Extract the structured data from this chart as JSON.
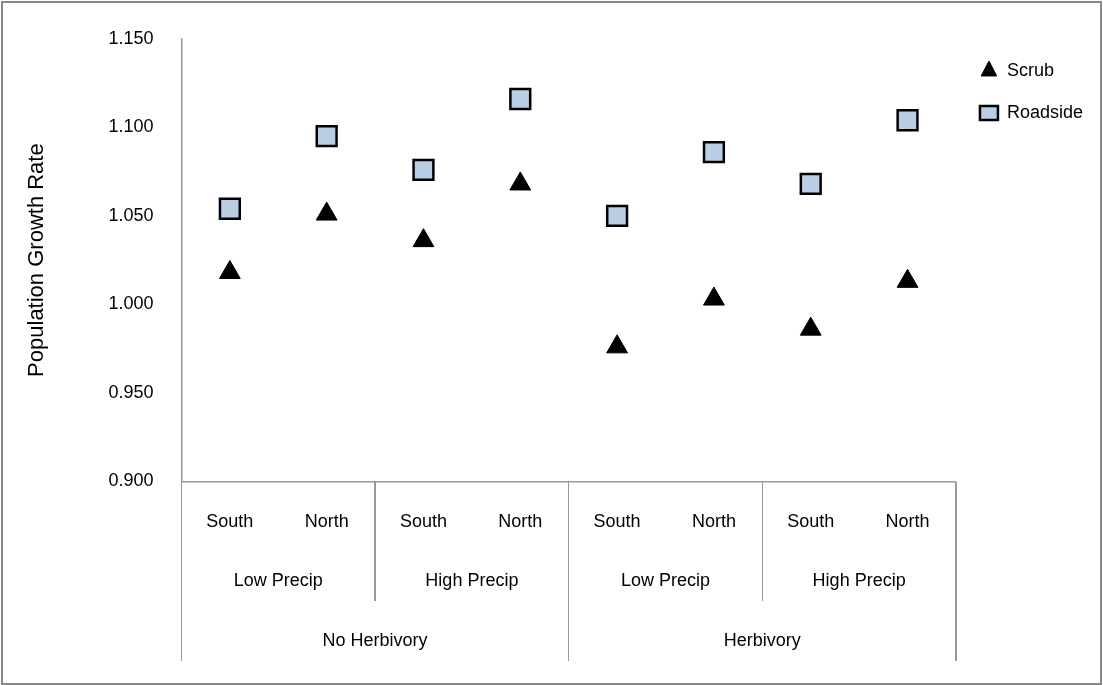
{
  "chart_data": {
    "type": "scatter",
    "ylabel": "Population Growth Rate",
    "categories": [
      "South",
      "North",
      "South",
      "North",
      "South",
      "North",
      "South",
      "North"
    ],
    "annotations": [
      "Low Precip",
      "High Precip",
      "Low Precip",
      "High Precip",
      "No Herbivory",
      "Herbivory"
    ],
    "series": [
      {
        "name": "Scrub",
        "color": "#000000",
        "marker": "triangle",
        "values": [
          1.018,
          1.051,
          1.036,
          1.068,
          0.976,
          1.003,
          0.986,
          1.013
        ]
      },
      {
        "name": "Roadside",
        "color": "#b9cde5",
        "marker": "square",
        "values": [
          1.054,
          1.095,
          1.076,
          1.116,
          1.05,
          1.086,
          1.068,
          1.104
        ]
      }
    ],
    "ylim": [
      0.9,
      1.15
    ],
    "yticks": [
      {
        "value": 0.9,
        "label": "0.900"
      },
      {
        "value": 0.95,
        "label": "0.950"
      },
      {
        "value": 1.0,
        "label": "1.000"
      },
      {
        "value": 1.05,
        "label": "1.050"
      },
      {
        "value": 1.1,
        "label": "1.100"
      },
      {
        "value": 1.15,
        "label": "1.150"
      }
    ],
    "legend": "top right"
  }
}
